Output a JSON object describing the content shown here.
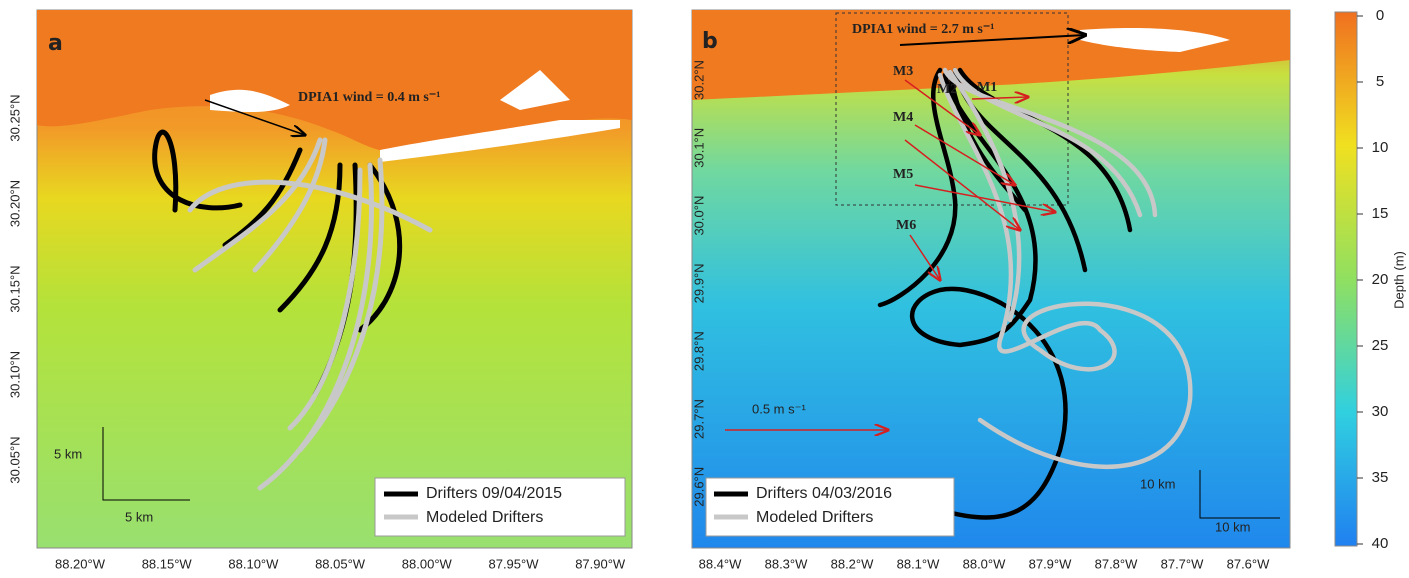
{
  "panels": [
    {
      "label": "a",
      "wind": "DPIA1 wind = 0.4 m s⁻¹",
      "lon_ticks": [
        "88.20°W",
        "88.15°W",
        "88.10°W",
        "88.05°W",
        "88.00°W",
        "87.95°W",
        "87.90°W"
      ],
      "lat_ticks": [
        "30.25°N",
        "30.20°N",
        "30.15°N",
        "30.10°N",
        "30.05°N"
      ],
      "scale_vertical": "5 km",
      "scale_horizontal": "5 km",
      "legend": [
        "Drifters 09/04/2015",
        "Modeled Drifters"
      ]
    },
    {
      "label": "b",
      "wind": "DPIA1 wind = 2.7 m s⁻¹",
      "current_scale": "0.5 m s⁻¹",
      "markers": [
        "M1",
        "M2",
        "M3",
        "M4",
        "M5",
        "M6"
      ],
      "lon_ticks": [
        "88.4°W",
        "88.3°W",
        "88.2°W",
        "88.1°W",
        "88.0°W",
        "87.9°W",
        "87.8°W",
        "87.7°W",
        "87.6°W"
      ],
      "lat_ticks": [
        "30.2°N",
        "30.1°N",
        "30.0°N",
        "29.9°N",
        "29.8°N",
        "29.7°N",
        "29.6°N"
      ],
      "scale_vertical": "10 km",
      "scale_horizontal": "10 km",
      "legend": [
        "Drifters 04/03/2016",
        "Modeled Drifters"
      ]
    }
  ],
  "colorbar": {
    "label": "Depth (m)",
    "ticks": [
      0,
      5,
      10,
      15,
      20,
      25,
      30,
      35,
      40
    ]
  }
}
